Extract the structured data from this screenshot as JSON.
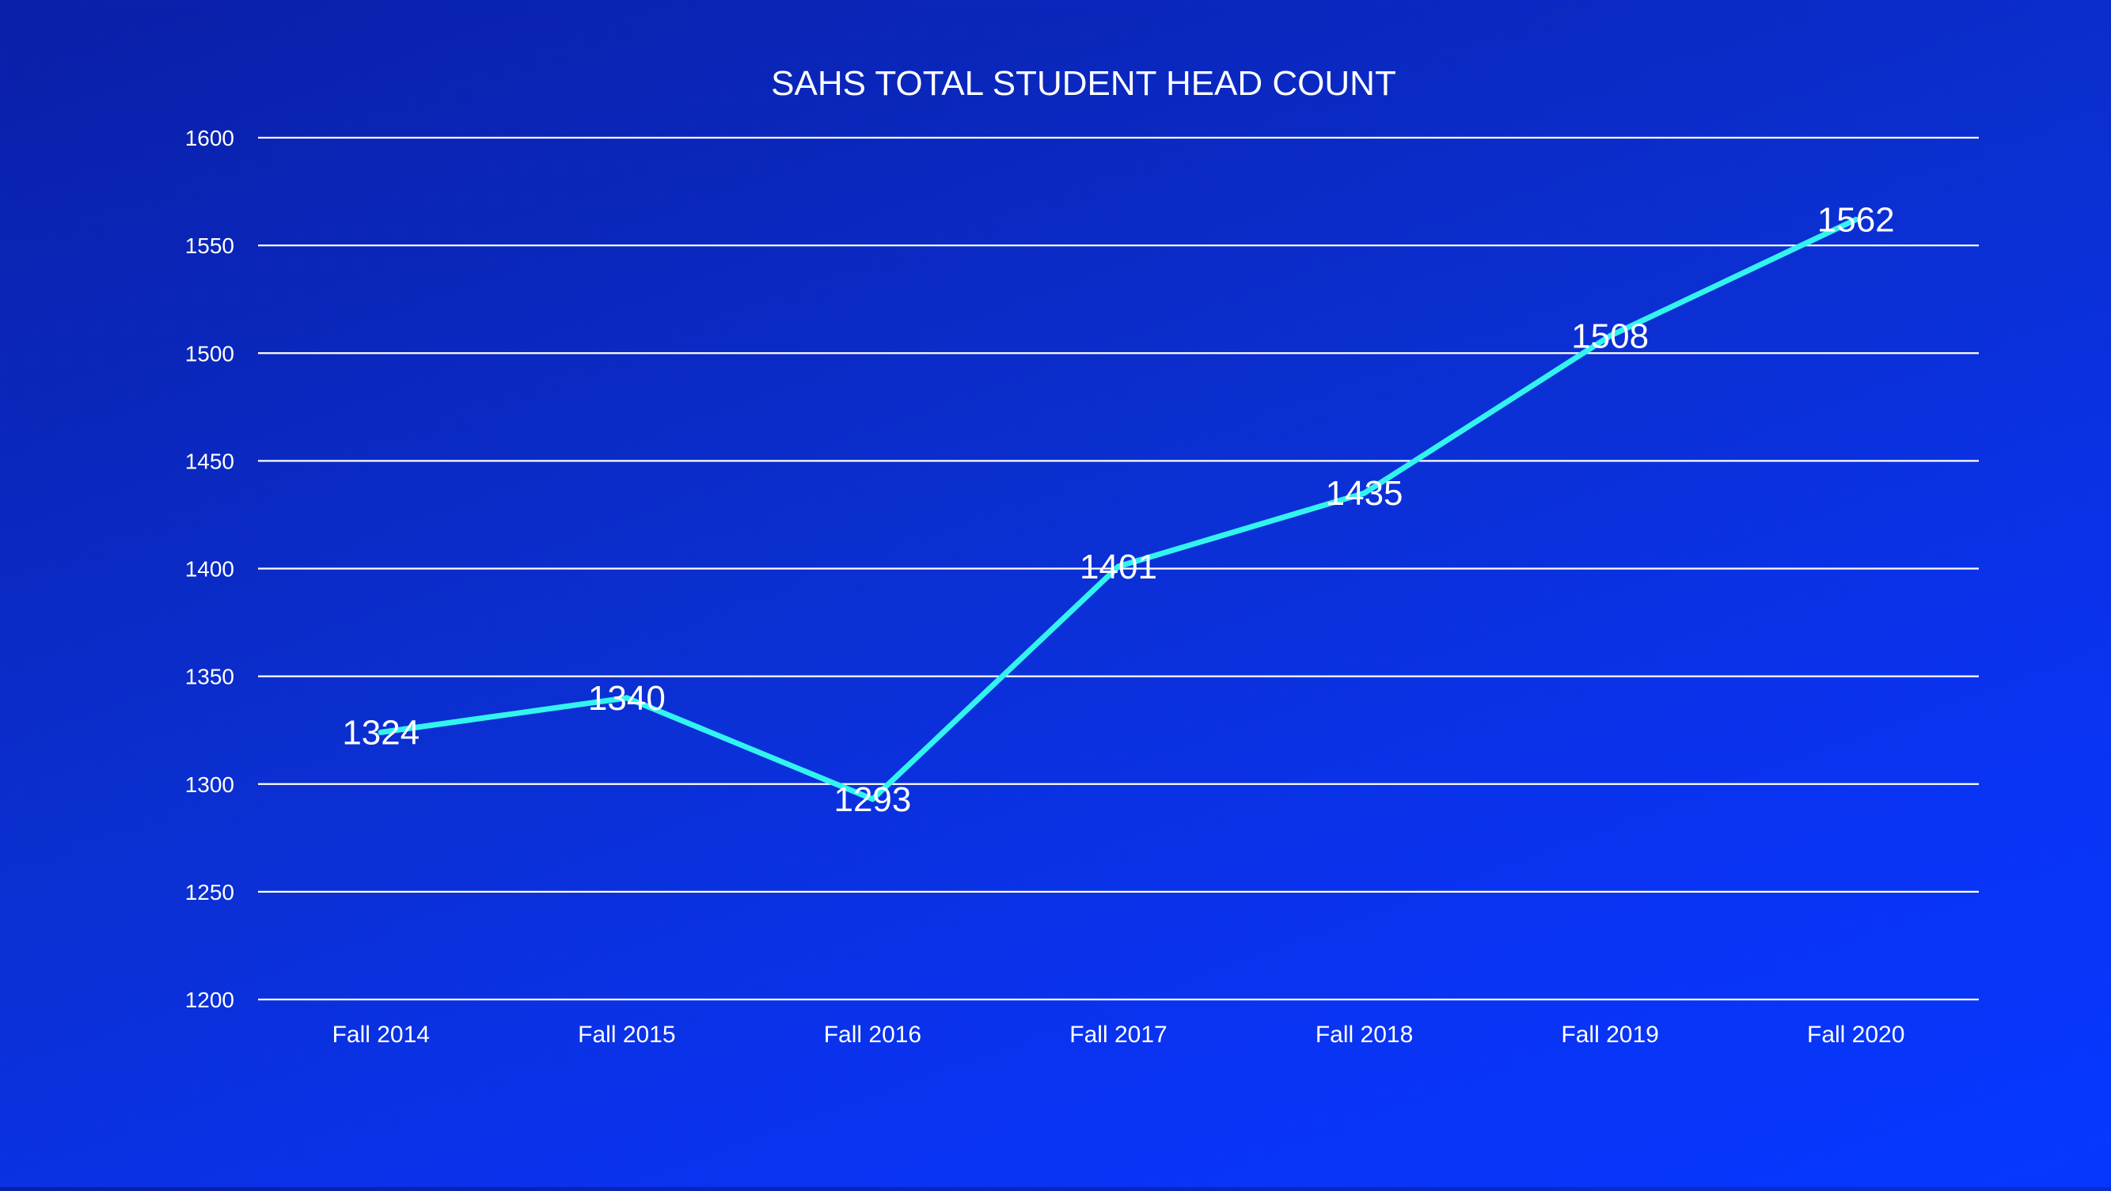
{
  "chart_data": {
    "type": "line",
    "title": "SAHS TOTAL STUDENT HEAD COUNT",
    "xlabel": "",
    "ylabel": "",
    "categories": [
      "Fall 2014",
      "Fall 2015",
      "Fall 2016",
      "Fall 2017",
      "Fall 2018",
      "Fall 2019",
      "Fall 2020"
    ],
    "series": [
      {
        "values": [
          1324,
          1340,
          1293,
          1401,
          1435,
          1508,
          1562
        ]
      }
    ],
    "ylim": [
      1200,
      1600
    ],
    "yticks": [
      1200,
      1250,
      1300,
      1350,
      1400,
      1450,
      1500,
      1550,
      1600
    ],
    "grid": true,
    "legend": "none",
    "colors": {
      "line": "#33f3f0",
      "grid": "#ffffff",
      "text": "#ffffff"
    }
  }
}
